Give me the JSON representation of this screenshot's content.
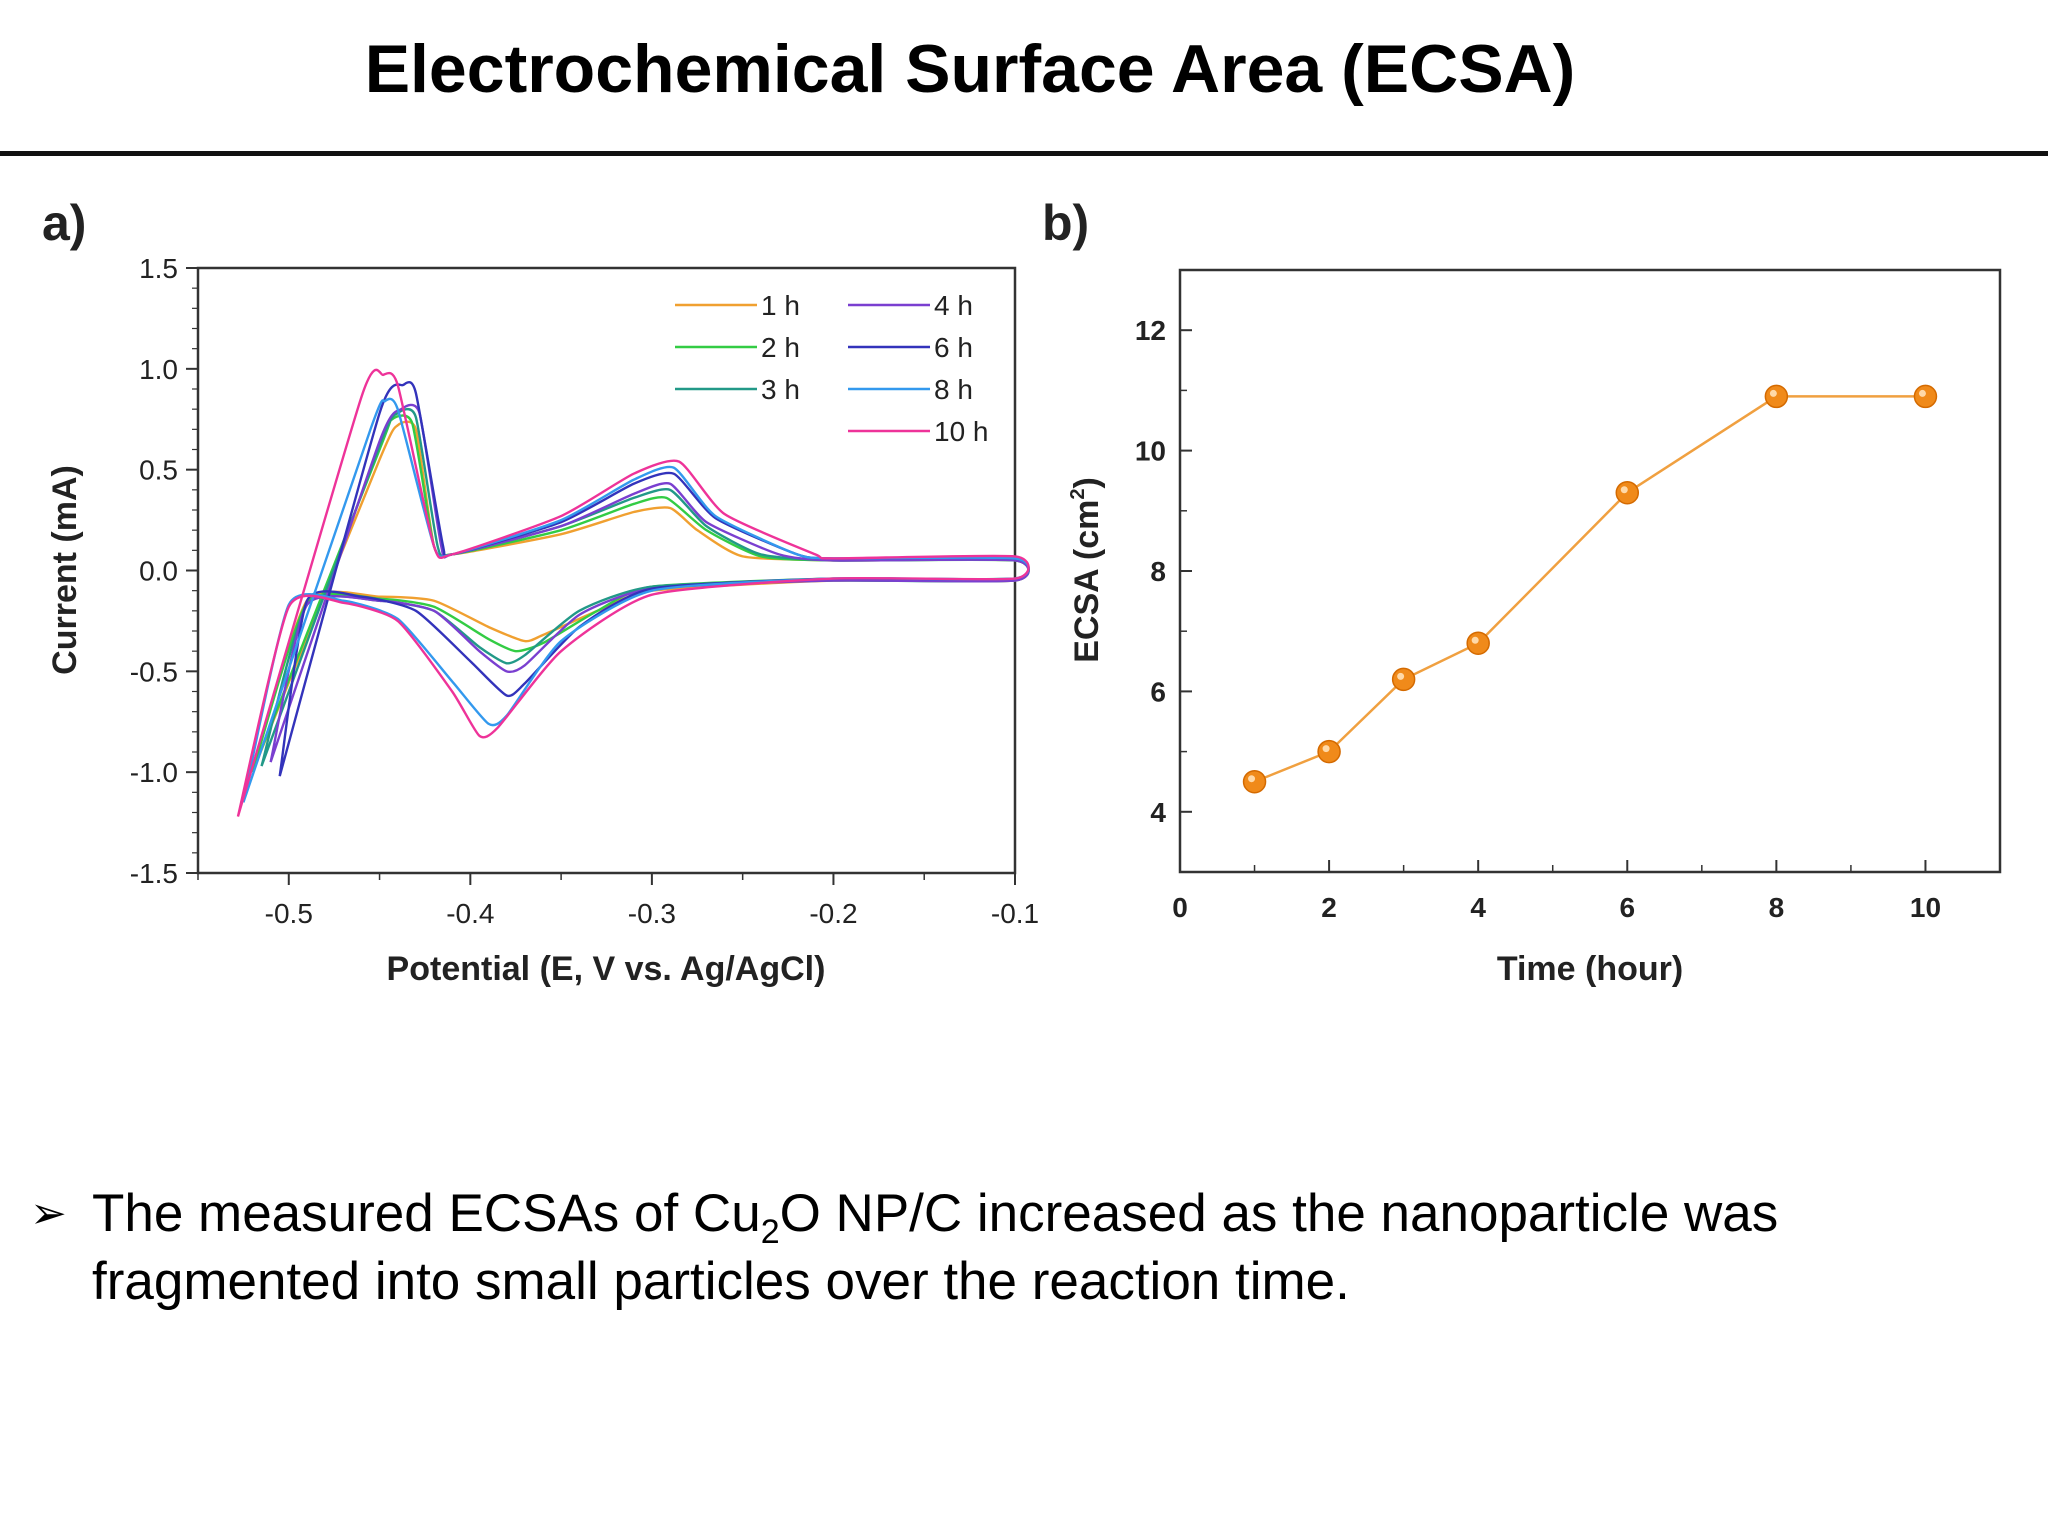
{
  "slide": {
    "title": "Electrochemical Surface Area (ECSA)",
    "bullet": {
      "marker": "➢",
      "text_before": "The measured ECSAs of Cu",
      "subscript": "2",
      "text_after": "O NP/C increased as the nanoparticle was fragmented into small particles over the reaction time."
    }
  },
  "chart_data": [
    {
      "panel_label": "a)",
      "type": "line",
      "xlabel": "Potential (E, V vs. Ag/AgCl)",
      "ylabel": "Current (mA)",
      "xlim": [
        -0.55,
        -0.1
      ],
      "ylim": [
        -1.5,
        1.5
      ],
      "xticks": [
        -0.5,
        -0.4,
        -0.3,
        -0.2,
        -0.1
      ],
      "xtick_labels": [
        "-0.5",
        "-0.4",
        "-0.3",
        "-0.2",
        "-0.1"
      ],
      "yticks": [
        1.5,
        1.0,
        0.5,
        0.0,
        -0.5,
        -1.0,
        -1.5
      ],
      "ytick_labels": [
        "1.5",
        "1.0",
        "0.5",
        "0.0",
        "-0.5",
        "-1.0",
        "-1.5"
      ],
      "grid": false,
      "legend_position": "top-right",
      "series": [
        {
          "name": "1 h",
          "color": "#f0a030",
          "x": [
            -0.52,
            -0.45,
            -0.44,
            -0.43,
            -0.42,
            -0.41,
            -0.35,
            -0.31,
            -0.29,
            -0.275,
            -0.25,
            -0.2,
            -0.1,
            -0.1,
            -0.2,
            -0.3,
            -0.33,
            -0.36,
            -0.37,
            -0.39,
            -0.42,
            -0.45,
            -0.49,
            -0.52
          ],
          "y": [
            -1.0,
            0.55,
            0.72,
            0.7,
            0.12,
            0.08,
            0.18,
            0.29,
            0.31,
            0.2,
            0.07,
            0.05,
            0.05,
            -0.05,
            -0.05,
            -0.1,
            -0.2,
            -0.32,
            -0.35,
            -0.28,
            -0.15,
            -0.13,
            -0.15,
            -1.0
          ]
        },
        {
          "name": "2 h",
          "color": "#33cc44",
          "x": [
            -0.52,
            -0.45,
            -0.443,
            -0.432,
            -0.42,
            -0.41,
            -0.35,
            -0.31,
            -0.292,
            -0.27,
            -0.24,
            -0.2,
            -0.1,
            -0.1,
            -0.2,
            -0.3,
            -0.33,
            -0.36,
            -0.375,
            -0.39,
            -0.42,
            -0.45,
            -0.49,
            -0.52
          ],
          "y": [
            -1.0,
            0.6,
            0.75,
            0.73,
            0.12,
            0.08,
            0.2,
            0.33,
            0.36,
            0.2,
            0.07,
            0.05,
            0.05,
            -0.04,
            -0.04,
            -0.08,
            -0.2,
            -0.36,
            -0.4,
            -0.34,
            -0.18,
            -0.14,
            -0.16,
            -1.0
          ]
        },
        {
          "name": "3 h",
          "color": "#229988",
          "x": [
            -0.515,
            -0.45,
            -0.44,
            -0.43,
            -0.418,
            -0.41,
            -0.35,
            -0.31,
            -0.29,
            -0.27,
            -0.24,
            -0.2,
            -0.1,
            -0.1,
            -0.2,
            -0.3,
            -0.34,
            -0.37,
            -0.38,
            -0.395,
            -0.42,
            -0.45,
            -0.49,
            -0.515
          ],
          "y": [
            -0.97,
            0.62,
            0.78,
            0.76,
            0.12,
            0.08,
            0.22,
            0.36,
            0.4,
            0.22,
            0.08,
            0.05,
            0.05,
            -0.05,
            -0.05,
            -0.08,
            -0.2,
            -0.42,
            -0.46,
            -0.38,
            -0.2,
            -0.15,
            -0.17,
            -0.97
          ]
        },
        {
          "name": "4 h",
          "color": "#7a3fd0",
          "x": [
            -0.51,
            -0.45,
            -0.438,
            -0.428,
            -0.416,
            -0.41,
            -0.35,
            -0.31,
            -0.29,
            -0.27,
            -0.23,
            -0.2,
            -0.1,
            -0.1,
            -0.2,
            -0.3,
            -0.34,
            -0.37,
            -0.38,
            -0.395,
            -0.42,
            -0.45,
            -0.49,
            -0.51
          ],
          "y": [
            -0.95,
            0.64,
            0.8,
            0.78,
            0.12,
            0.08,
            0.22,
            0.38,
            0.43,
            0.24,
            0.08,
            0.05,
            0.05,
            -0.05,
            -0.05,
            -0.09,
            -0.22,
            -0.47,
            -0.5,
            -0.4,
            -0.2,
            -0.15,
            -0.17,
            -0.95
          ]
        },
        {
          "name": "6 h",
          "color": "#3333bb",
          "x": [
            -0.505,
            -0.45,
            -0.437,
            -0.43,
            -0.415,
            -0.41,
            -0.35,
            -0.31,
            -0.288,
            -0.265,
            -0.22,
            -0.2,
            -0.1,
            -0.1,
            -0.2,
            -0.3,
            -0.34,
            -0.37,
            -0.38,
            -0.4,
            -0.43,
            -0.46,
            -0.49,
            -0.505
          ],
          "y": [
            -1.02,
            0.78,
            0.92,
            0.88,
            0.12,
            0.08,
            0.24,
            0.43,
            0.48,
            0.26,
            0.08,
            0.06,
            0.06,
            -0.04,
            -0.04,
            -0.09,
            -0.28,
            -0.56,
            -0.62,
            -0.45,
            -0.2,
            -0.13,
            -0.15,
            -1.02
          ]
        },
        {
          "name": "8 h",
          "color": "#3399ee",
          "x": [
            -0.525,
            -0.455,
            -0.447,
            -0.44,
            -0.42,
            -0.41,
            -0.35,
            -0.31,
            -0.288,
            -0.265,
            -0.22,
            -0.2,
            -0.1,
            -0.1,
            -0.2,
            -0.3,
            -0.35,
            -0.38,
            -0.39,
            -0.41,
            -0.44,
            -0.47,
            -0.5,
            -0.525
          ],
          "y": [
            -1.15,
            0.7,
            0.84,
            0.8,
            0.12,
            0.08,
            0.25,
            0.45,
            0.51,
            0.27,
            0.08,
            0.06,
            0.06,
            -0.04,
            -0.04,
            -0.1,
            -0.35,
            -0.72,
            -0.76,
            -0.55,
            -0.24,
            -0.15,
            -0.17,
            -1.15
          ]
        },
        {
          "name": "10 h",
          "color": "#ee3399",
          "x": [
            -0.528,
            -0.46,
            -0.448,
            -0.44,
            -0.42,
            -0.41,
            -0.35,
            -0.31,
            -0.285,
            -0.26,
            -0.21,
            -0.2,
            -0.1,
            -0.1,
            -0.2,
            -0.3,
            -0.35,
            -0.385,
            -0.395,
            -0.41,
            -0.44,
            -0.47,
            -0.5,
            -0.528
          ],
          "y": [
            -1.22,
            0.86,
            0.97,
            0.92,
            0.12,
            0.08,
            0.27,
            0.48,
            0.54,
            0.28,
            0.08,
            0.06,
            0.07,
            -0.04,
            -0.04,
            -0.12,
            -0.4,
            -0.78,
            -0.82,
            -0.6,
            -0.25,
            -0.16,
            -0.18,
            -1.22
          ]
        }
      ]
    },
    {
      "panel_label": "b)",
      "type": "line",
      "xlabel": "Time (hour)",
      "ylabel": "ECSA (cm",
      "ylabel_superscript": "2",
      "ylabel_suffix": ")",
      "xlim": [
        0,
        11
      ],
      "ylim": [
        3,
        13
      ],
      "xticks": [
        0,
        2,
        4,
        6,
        8,
        10
      ],
      "xtick_labels": [
        "0",
        "2",
        "4",
        "6",
        "8",
        "10"
      ],
      "yticks": [
        4,
        6,
        8,
        10,
        12
      ],
      "ytick_labels": [
        "4",
        "6",
        "8",
        "10",
        "12"
      ],
      "grid": false,
      "marker_color": "#f08a1a",
      "line_color": "#f0a040",
      "series": [
        {
          "x": [
            1,
            2,
            3,
            4,
            6,
            8,
            10
          ],
          "y": [
            4.5,
            5.0,
            6.2,
            6.8,
            9.3,
            10.9,
            10.9
          ]
        }
      ]
    }
  ]
}
